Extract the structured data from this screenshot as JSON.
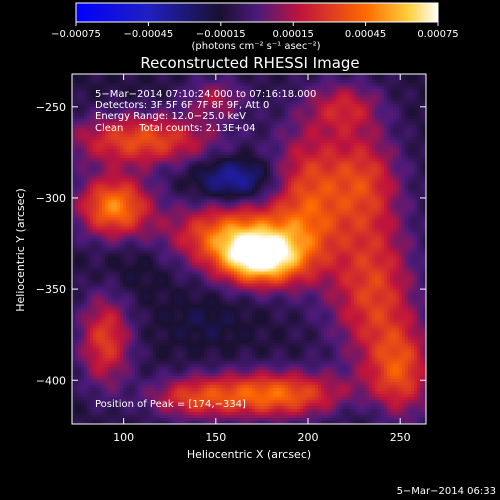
{
  "chart_data": {
    "type": "heatmap",
    "title": "Reconstructed RHESSI Image",
    "xlabel": "Heliocentric X (arcsec)",
    "ylabel": "Heliocentric Y (arcsec)",
    "xlim": [
      72,
      264
    ],
    "ylim": [
      -424,
      -232
    ],
    "x_ticks": [
      100,
      150,
      200,
      250
    ],
    "x_tick_labels": [
      "100",
      "150",
      "200",
      "250"
    ],
    "y_ticks": [
      -250,
      -300,
      -350,
      -400
    ],
    "y_tick_labels": [
      "−250",
      "−300",
      "−350",
      "−400"
    ],
    "colorbar": {
      "min": -0.00075,
      "max": 0.00075,
      "tick_values": [
        -0.00075,
        -0.00045,
        -0.00015,
        0.00015,
        0.00045,
        0.00075
      ],
      "tick_labels": [
        "−0.00075",
        "−0.00045",
        "−0.00015",
        "0.00015",
        "0.00045",
        "0.00075"
      ],
      "unit_label": "(photons cm⁻² s⁻¹ asec⁻²)",
      "colors": [
        "#0000ff",
        "#000000",
        "#4b1a7a",
        "#c0143c",
        "#ff6a00",
        "#ffffff"
      ]
    },
    "annotations": [
      "5−Mar−2014 07:10:24.000 to 07:16:18.000",
      "Detectors: 3F 5F 6F 7F 8F 9F, Att 0",
      "Energy Range: 12.0−25.0 keV",
      "Clean     Total counts: 2.13E+04"
    ],
    "peak_label": "Position of Peak = [174,−334]",
    "peak": [
      174,
      -334
    ],
    "blobs": [
      {
        "x": 174,
        "y": -334,
        "value": 0.00075,
        "sx": 16,
        "sy": 10
      },
      {
        "x": 160,
        "y": -320,
        "value": 0.0005,
        "sx": 25,
        "sy": 12
      },
      {
        "x": 95,
        "y": -305,
        "value": 0.00055,
        "sx": 14,
        "sy": 12
      },
      {
        "x": 110,
        "y": -268,
        "value": 0.0004,
        "sx": 28,
        "sy": 10
      },
      {
        "x": 200,
        "y": -300,
        "value": 0.00035,
        "sx": 14,
        "sy": 28
      },
      {
        "x": 230,
        "y": -290,
        "value": 0.0003,
        "sx": 14,
        "sy": 20
      },
      {
        "x": 235,
        "y": -350,
        "value": 0.00035,
        "sx": 16,
        "sy": 28
      },
      {
        "x": 250,
        "y": -395,
        "value": 0.00035,
        "sx": 12,
        "sy": 18
      },
      {
        "x": 180,
        "y": -408,
        "value": 0.0005,
        "sx": 28,
        "sy": 9
      },
      {
        "x": 90,
        "y": -378,
        "value": 0.00035,
        "sx": 10,
        "sy": 18
      },
      {
        "x": 135,
        "y": -410,
        "value": 0.0002,
        "sx": 16,
        "sy": 8
      },
      {
        "x": 220,
        "y": -250,
        "value": 0.0002,
        "sx": 14,
        "sy": 10
      },
      {
        "x": 150,
        "y": -245,
        "value": 0.00015,
        "sx": 12,
        "sy": 8
      },
      {
        "x": 160,
        "y": -290,
        "value": -0.00045,
        "sx": 14,
        "sy": 8
      },
      {
        "x": 105,
        "y": -335,
        "value": -0.0002,
        "sx": 14,
        "sy": 14
      },
      {
        "x": 145,
        "y": -368,
        "value": -0.0002,
        "sx": 16,
        "sy": 10
      },
      {
        "x": 230,
        "y": -415,
        "value": -0.0002,
        "sx": 12,
        "sy": 8
      }
    ],
    "background_value": -0.00012
  },
  "footer_timestamp": "5−Mar−2014 06:33"
}
